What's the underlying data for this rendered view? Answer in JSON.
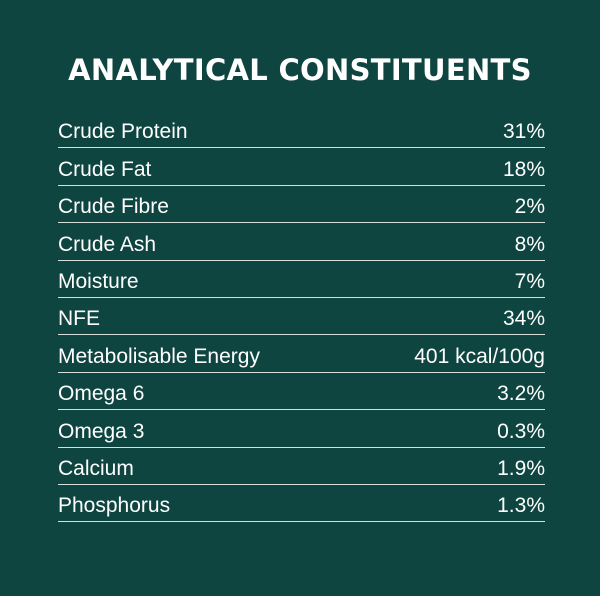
{
  "title": "ANALYTICAL CONSTITUENTS",
  "rows": [
    {
      "label": "Crude Protein",
      "value": "31%"
    },
    {
      "label": "Crude Fat",
      "value": "18%"
    },
    {
      "label": "Crude Fibre",
      "value": "2%"
    },
    {
      "label": "Crude Ash",
      "value": "8%"
    },
    {
      "label": "Moisture",
      "value": "7%"
    },
    {
      "label": "NFE",
      "value": "34%"
    },
    {
      "label": "Metabolisable Energy",
      "value": "401 kcal/100g"
    },
    {
      "label": "Omega 6",
      "value": "3.2%"
    },
    {
      "label": "Omega 3",
      "value": "0.3%"
    },
    {
      "label": "Calcium",
      "value": "1.9%"
    },
    {
      "label": "Phosphorus",
      "value": "1.3%"
    }
  ],
  "colors": {
    "background": "#0e4540",
    "text": "#ffffff",
    "divider": "#d7dfdb"
  }
}
